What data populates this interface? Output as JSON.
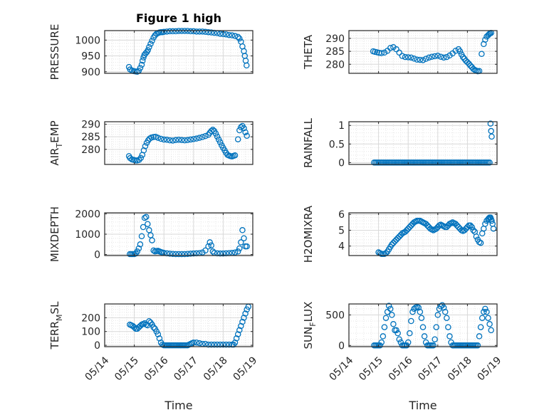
{
  "figure": {
    "title": "Figure 1 high",
    "marker_color": "#0072bd"
  },
  "chart_data": [
    {
      "type": "scatter",
      "ylabel": "PRESSURE",
      "xlim": [
        0,
        5
      ],
      "ylim": [
        895,
        1030
      ],
      "yticks": [
        900,
        950,
        1000
      ],
      "ytick_labels": [
        "900",
        "950",
        "1000"
      ],
      "x": [
        0.82,
        0.86,
        0.92,
        0.98,
        1.04,
        1.1,
        1.15,
        1.2,
        1.25,
        1.28,
        1.31,
        1.34,
        1.38,
        1.42,
        1.46,
        1.5,
        1.55,
        1.6,
        1.65,
        1.7,
        1.75,
        1.8,
        1.85,
        1.9,
        1.95,
        2.0,
        2.1,
        2.2,
        2.3,
        2.4,
        2.5,
        2.6,
        2.7,
        2.8,
        2.9,
        3.0,
        3.1,
        3.2,
        3.3,
        3.4,
        3.5,
        3.6,
        3.7,
        3.8,
        3.9,
        4.0,
        4.1,
        4.2,
        4.3,
        4.4,
        4.5,
        4.55,
        4.6,
        4.65,
        4.7,
        4.73,
        4.76,
        4.79
      ],
      "y": [
        915,
        907,
        904,
        902,
        901,
        900,
        903,
        912,
        922,
        935,
        945,
        953,
        958,
        962,
        968,
        978,
        988,
        998,
        1008,
        1015,
        1020,
        1022,
        1024,
        1025,
        1025,
        1026,
        1027,
        1028,
        1028,
        1028,
        1029,
        1029,
        1029,
        1029,
        1028,
        1028,
        1027,
        1027,
        1027,
        1026,
        1025,
        1024,
        1023,
        1022,
        1020,
        1019,
        1018,
        1016,
        1015,
        1013,
        1010,
        1005,
        995,
        980,
        965,
        950,
        935,
        920
      ]
    },
    {
      "type": "scatter",
      "ylabel": "THETA",
      "xlim": [
        0,
        5
      ],
      "ylim": [
        276.5,
        293
      ],
      "yticks": [
        280,
        285,
        290
      ],
      "ytick_labels": [
        "280",
        "285",
        "290"
      ],
      "x": [
        0.82,
        0.88,
        0.95,
        1.02,
        1.1,
        1.2,
        1.3,
        1.4,
        1.5,
        1.6,
        1.7,
        1.8,
        1.9,
        2.0,
        2.1,
        2.2,
        2.3,
        2.4,
        2.5,
        2.6,
        2.7,
        2.8,
        2.9,
        3.0,
        3.1,
        3.2,
        3.3,
        3.4,
        3.5,
        3.6,
        3.7,
        3.75,
        3.8,
        3.85,
        3.9,
        3.95,
        4.0,
        4.05,
        4.1,
        4.15,
        4.2,
        4.25,
        4.3,
        4.35,
        4.4,
        4.48,
        4.55,
        4.6,
        4.65,
        4.7,
        4.73,
        4.76,
        4.8
      ],
      "y": [
        285,
        284.8,
        284.6,
        284.4,
        284.3,
        284.5,
        285.2,
        286.3,
        286.6,
        285.8,
        284.5,
        283.2,
        282.8,
        282.7,
        282.6,
        282.2,
        281.8,
        281.7,
        281.6,
        282.1,
        282.6,
        282.9,
        283.1,
        283.3,
        282.9,
        282.6,
        282.8,
        283.4,
        284.2,
        285.2,
        285.8,
        285,
        283.8,
        282.8,
        282.1,
        281.3,
        280.8,
        280.2,
        279.5,
        278.9,
        278.2,
        277.8,
        277.5,
        277.3,
        277.4,
        284,
        287.8,
        289.5,
        290.7,
        291.2,
        291.6,
        291.9,
        292.1
      ]
    },
    {
      "type": "scatter",
      "ylabel": "AIR_TEMP",
      "xlim": [
        0,
        5
      ],
      "ylim": [
        274,
        291
      ],
      "yticks": [
        280,
        285,
        290
      ],
      "ytick_labels": [
        "280",
        "285",
        "290"
      ],
      "x": [
        0.82,
        0.86,
        0.92,
        0.98,
        1.04,
        1.1,
        1.16,
        1.22,
        1.27,
        1.32,
        1.37,
        1.42,
        1.47,
        1.52,
        1.58,
        1.65,
        1.72,
        1.8,
        1.9,
        2.0,
        2.1,
        2.2,
        2.3,
        2.4,
        2.5,
        2.6,
        2.7,
        2.8,
        2.9,
        3.0,
        3.1,
        3.2,
        3.3,
        3.4,
        3.5,
        3.55,
        3.6,
        3.65,
        3.7,
        3.75,
        3.8,
        3.85,
        3.9,
        3.95,
        4.0,
        4.05,
        4.1,
        4.15,
        4.2,
        4.25,
        4.3,
        4.35,
        4.4,
        4.5,
        4.55,
        4.6,
        4.65,
        4.7,
        4.75,
        4.8
      ],
      "y": [
        277.3,
        276.5,
        276,
        275.8,
        275.6,
        275.6,
        275.8,
        276.6,
        277.8,
        279.6,
        281.3,
        282.6,
        283.6,
        284.3,
        284.7,
        284.9,
        285,
        284.6,
        284.2,
        283.9,
        283.8,
        283.6,
        283.5,
        283.7,
        283.8,
        283.7,
        283.6,
        283.7,
        283.9,
        284.1,
        284.3,
        284.6,
        284.9,
        285.3,
        285.8,
        286.6,
        287.3,
        287.8,
        287.3,
        286.3,
        285.1,
        283.9,
        282.8,
        281.6,
        280.6,
        279.6,
        278.6,
        277.8,
        277.5,
        277.3,
        277.2,
        277.4,
        277.6,
        284,
        287.6,
        288.8,
        289.3,
        288.4,
        286.8,
        285.4
      ]
    },
    {
      "type": "scatter",
      "ylabel": "RAINFALL",
      "xlim": [
        0,
        5
      ],
      "ylim": [
        -0.05,
        1.1
      ],
      "yticks": [
        0,
        0.5,
        1
      ],
      "ytick_labels": [
        "0",
        "0.5",
        "1"
      ],
      "x": [
        0.85,
        0.9,
        0.95,
        1.0,
        1.05,
        1.1,
        1.15,
        1.2,
        1.25,
        1.3,
        1.35,
        1.4,
        1.45,
        1.5,
        1.55,
        1.6,
        1.65,
        1.7,
        1.75,
        1.8,
        1.85,
        1.9,
        1.95,
        2.0,
        2.05,
        2.1,
        2.15,
        2.2,
        2.25,
        2.3,
        2.35,
        2.4,
        2.45,
        2.5,
        2.55,
        2.6,
        2.65,
        2.7,
        2.75,
        2.8,
        2.85,
        2.9,
        2.95,
        3.0,
        3.05,
        3.1,
        3.15,
        3.2,
        3.25,
        3.3,
        3.35,
        3.4,
        3.45,
        3.5,
        3.55,
        3.6,
        3.65,
        3.7,
        3.75,
        3.8,
        3.85,
        3.9,
        3.95,
        4.0,
        4.05,
        4.1,
        4.15,
        4.2,
        4.25,
        4.3,
        4.35,
        4.4,
        4.45,
        4.5,
        4.55,
        4.6,
        4.65,
        4.7,
        4.75,
        4.78,
        4.8,
        4.82
      ],
      "y": [
        0,
        0,
        0,
        0,
        0,
        0,
        0,
        0,
        0,
        0,
        0,
        0,
        0,
        0,
        0,
        0,
        0,
        0,
        0,
        0,
        0,
        0,
        0,
        0,
        0,
        0,
        0,
        0,
        0,
        0,
        0,
        0,
        0,
        0,
        0,
        0,
        0,
        0,
        0,
        0,
        0,
        0,
        0,
        0,
        0,
        0,
        0,
        0,
        0,
        0,
        0,
        0,
        0,
        0,
        0,
        0,
        0,
        0,
        0,
        0,
        0,
        0,
        0,
        0,
        0,
        0,
        0,
        0,
        0,
        0,
        0,
        0,
        0,
        0,
        0,
        0,
        0,
        0,
        0,
        1.05,
        0.85,
        0.7
      ]
    },
    {
      "type": "scatter",
      "ylabel": "MIXDEPTH",
      "xlim": [
        0,
        5
      ],
      "ylim": [
        -50,
        2050
      ],
      "yticks": [
        0,
        1000,
        2000
      ],
      "ytick_labels": [
        "0",
        "1000",
        "2000"
      ],
      "x": [
        0.85,
        0.9,
        0.95,
        1.0,
        1.05,
        1.1,
        1.15,
        1.2,
        1.25,
        1.3,
        1.35,
        1.4,
        1.45,
        1.5,
        1.55,
        1.6,
        1.65,
        1.7,
        1.75,
        1.8,
        1.85,
        1.9,
        1.95,
        2.0,
        2.1,
        2.2,
        2.3,
        2.4,
        2.5,
        2.6,
        2.7,
        2.8,
        2.9,
        3.0,
        3.1,
        3.2,
        3.3,
        3.4,
        3.5,
        3.55,
        3.6,
        3.65,
        3.7,
        3.8,
        3.9,
        4.0,
        4.1,
        4.2,
        4.3,
        4.4,
        4.5,
        4.55,
        4.6,
        4.65,
        4.7,
        4.75,
        4.8
      ],
      "y": [
        20,
        20,
        20,
        20,
        50,
        150,
        300,
        500,
        900,
        1350,
        1800,
        1850,
        1500,
        1200,
        950,
        700,
        200,
        150,
        170,
        180,
        150,
        120,
        100,
        80,
        60,
        40,
        30,
        20,
        20,
        20,
        20,
        30,
        40,
        50,
        60,
        70,
        100,
        200,
        400,
        600,
        450,
        150,
        80,
        60,
        50,
        50,
        60,
        70,
        80,
        100,
        150,
        300,
        600,
        1200,
        800,
        400,
        400
      ]
    },
    {
      "type": "scatter",
      "ylabel": "H2OMIXRA",
      "xlim": [
        0,
        5
      ],
      "ylim": [
        3.4,
        6.1
      ],
      "yticks": [
        4,
        5,
        6
      ],
      "ytick_labels": [
        "4",
        "5",
        "6"
      ],
      "x": [
        1.0,
        1.05,
        1.1,
        1.15,
        1.2,
        1.25,
        1.3,
        1.35,
        1.4,
        1.45,
        1.5,
        1.55,
        1.6,
        1.65,
        1.7,
        1.75,
        1.8,
        1.85,
        1.9,
        1.95,
        2.0,
        2.05,
        2.1,
        2.15,
        2.2,
        2.25,
        2.3,
        2.35,
        2.4,
        2.45,
        2.5,
        2.55,
        2.6,
        2.65,
        2.7,
        2.75,
        2.8,
        2.85,
        2.9,
        2.95,
        3.0,
        3.05,
        3.1,
        3.15,
        3.2,
        3.25,
        3.3,
        3.35,
        3.4,
        3.45,
        3.5,
        3.55,
        3.6,
        3.65,
        3.7,
        3.75,
        3.8,
        3.85,
        3.9,
        3.95,
        4.0,
        4.05,
        4.1,
        4.15,
        4.2,
        4.25,
        4.3,
        4.35,
        4.4,
        4.45,
        4.5,
        4.55,
        4.6,
        4.65,
        4.7,
        4.72,
        4.75,
        4.78,
        4.8,
        4.82,
        4.85,
        4.88
      ],
      "y": [
        3.6,
        3.55,
        3.5,
        3.5,
        3.5,
        3.55,
        3.65,
        3.8,
        3.95,
        4.1,
        4.2,
        4.3,
        4.4,
        4.5,
        4.6,
        4.7,
        4.8,
        4.85,
        4.9,
        5.0,
        5.1,
        5.2,
        5.3,
        5.4,
        5.5,
        5.55,
        5.6,
        5.6,
        5.6,
        5.55,
        5.5,
        5.45,
        5.4,
        5.3,
        5.2,
        5.1,
        5.05,
        5.0,
        5.05,
        5.1,
        5.2,
        5.3,
        5.35,
        5.3,
        5.25,
        5.2,
        5.2,
        5.3,
        5.4,
        5.45,
        5.5,
        5.45,
        5.4,
        5.3,
        5.2,
        5.1,
        5.0,
        4.95,
        5.0,
        5.1,
        5.2,
        5.3,
        5.3,
        5.2,
        5.0,
        4.9,
        4.6,
        4.4,
        4.25,
        4.2,
        4.8,
        5.1,
        5.4,
        5.6,
        5.7,
        5.75,
        5.8,
        5.8,
        5.7,
        5.6,
        5.4,
        5.1
      ]
    },
    {
      "type": "scatter",
      "ylabel": "TERR_MSL",
      "xlim": [
        0,
        5
      ],
      "ylim": [
        -10,
        300
      ],
      "yticks": [
        0,
        100,
        200
      ],
      "ytick_labels": [
        "0",
        "100",
        "200"
      ],
      "x": [
        0.85,
        0.9,
        0.95,
        1.0,
        1.05,
        1.1,
        1.15,
        1.2,
        1.25,
        1.3,
        1.35,
        1.4,
        1.45,
        1.5,
        1.55,
        1.6,
        1.65,
        1.7,
        1.75,
        1.8,
        1.85,
        1.9,
        1.95,
        2.0,
        2.05,
        2.1,
        2.15,
        2.2,
        2.25,
        2.3,
        2.35,
        2.4,
        2.45,
        2.5,
        2.55,
        2.6,
        2.65,
        2.7,
        2.75,
        2.8,
        2.85,
        2.9,
        2.95,
        3.0,
        3.1,
        3.2,
        3.3,
        3.4,
        3.5,
        3.6,
        3.7,
        3.8,
        3.9,
        4.0,
        4.1,
        4.2,
        4.3,
        4.35,
        4.4,
        4.45,
        4.5,
        4.55,
        4.6,
        4.65,
        4.7,
        4.75,
        4.8,
        4.85
      ],
      "y": [
        150,
        145,
        140,
        130,
        120,
        120,
        130,
        140,
        150,
        155,
        160,
        150,
        145,
        175,
        165,
        150,
        130,
        120,
        100,
        80,
        50,
        20,
        5,
        0,
        0,
        0,
        0,
        0,
        0,
        0,
        0,
        0,
        0,
        0,
        0,
        0,
        0,
        0,
        0,
        0,
        5,
        10,
        15,
        20,
        20,
        15,
        10,
        10,
        5,
        5,
        5,
        5,
        5,
        5,
        5,
        5,
        5,
        5,
        20,
        50,
        80,
        110,
        140,
        170,
        200,
        230,
        260,
        280
      ]
    },
    {
      "type": "scatter",
      "ylabel": "SUN_FLUX",
      "xlim": [
        0,
        5
      ],
      "ylim": [
        -20,
        680
      ],
      "yticks": [
        0,
        500
      ],
      "ytick_labels": [
        "0",
        "500"
      ],
      "x": [
        0.85,
        0.9,
        0.95,
        1.0,
        1.05,
        1.1,
        1.15,
        1.2,
        1.25,
        1.3,
        1.35,
        1.4,
        1.45,
        1.5,
        1.55,
        1.6,
        1.65,
        1.7,
        1.75,
        1.8,
        1.85,
        1.9,
        1.95,
        2.0,
        2.05,
        2.1,
        2.15,
        2.2,
        2.25,
        2.3,
        2.35,
        2.4,
        2.45,
        2.5,
        2.55,
        2.6,
        2.65,
        2.7,
        2.75,
        2.8,
        2.85,
        2.9,
        2.95,
        3.0,
        3.05,
        3.1,
        3.15,
        3.2,
        3.25,
        3.3,
        3.35,
        3.4,
        3.45,
        3.5,
        3.55,
        3.6,
        3.65,
        3.7,
        3.75,
        3.8,
        3.85,
        3.9,
        3.95,
        4.0,
        4.05,
        4.1,
        4.15,
        4.2,
        4.25,
        4.3,
        4.35,
        4.4,
        4.45,
        4.5,
        4.55,
        4.6,
        4.65,
        4.7,
        4.75,
        4.8
      ],
      "y": [
        0,
        0,
        0,
        0,
        0,
        50,
        150,
        300,
        450,
        550,
        650,
        600,
        500,
        350,
        250,
        250,
        200,
        100,
        50,
        0,
        0,
        0,
        0,
        50,
        200,
        400,
        550,
        600,
        620,
        630,
        620,
        550,
        450,
        300,
        150,
        50,
        0,
        0,
        0,
        0,
        0,
        100,
        300,
        500,
        600,
        640,
        660,
        620,
        550,
        450,
        300,
        150,
        50,
        0,
        0,
        0,
        0,
        0,
        0,
        0,
        0,
        0,
        0,
        0,
        0,
        0,
        0,
        0,
        0,
        0,
        0,
        150,
        300,
        450,
        550,
        600,
        550,
        450,
        350,
        250
      ]
    }
  ],
  "x_axis": {
    "xlabel": "Time",
    "tick_labels": [
      "05/14",
      "05/15",
      "05/16",
      "05/17",
      "05/18",
      "05/19"
    ]
  }
}
